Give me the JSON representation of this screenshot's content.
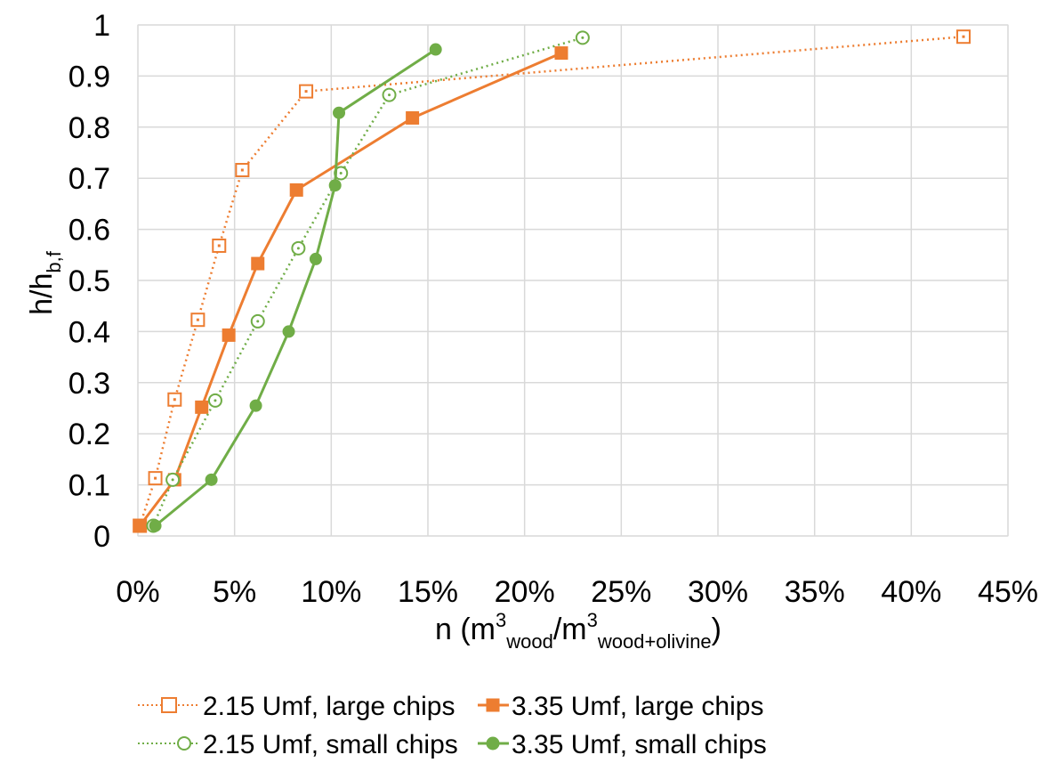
{
  "chart_data": {
    "type": "line",
    "x_axis": {
      "label_main": "n (m",
      "label_sup1": "3",
      "label_sub1": "wood",
      "label_slash": "/m",
      "label_sup2": "3",
      "label_sub2": "wood+olivine",
      "label_close": ")",
      "min": 0,
      "max": 0.45,
      "ticks": [
        0,
        0.05,
        0.1,
        0.15,
        0.2,
        0.25,
        0.3,
        0.35,
        0.4,
        0.45
      ],
      "tick_labels": [
        "0%",
        "5%",
        "10%",
        "15%",
        "20%",
        "25%",
        "30%",
        "35%",
        "40%",
        "45%"
      ]
    },
    "y_axis": {
      "label_main": "h/h",
      "label_sub": "b,f",
      "min": 0,
      "max": 1,
      "ticks": [
        0,
        0.1,
        0.2,
        0.3,
        0.4,
        0.5,
        0.6,
        0.7,
        0.8,
        0.9,
        1
      ],
      "tick_labels": [
        "0",
        "0.1",
        "0.2",
        "0.3",
        "0.4",
        "0.5",
        "0.6",
        "0.7",
        "0.8",
        "0.9",
        "1"
      ]
    },
    "grid": true,
    "legend_position": "bottom",
    "series": [
      {
        "name": "2.15 Umf, large chips",
        "color": "#ED7D31",
        "line_style": "dotted",
        "marker": "open-square",
        "points": [
          [
            0.001,
            0.02
          ],
          [
            0.009,
            0.113
          ],
          [
            0.019,
            0.267
          ],
          [
            0.031,
            0.423
          ],
          [
            0.042,
            0.568
          ],
          [
            0.054,
            0.716
          ],
          [
            0.087,
            0.87
          ],
          [
            0.427,
            0.977
          ]
        ]
      },
      {
        "name": "3.35 Umf, large chips",
        "color": "#ED7D31",
        "line_style": "solid",
        "marker": "filled-square",
        "points": [
          [
            0.001,
            0.02
          ],
          [
            0.019,
            0.11
          ],
          [
            0.033,
            0.252
          ],
          [
            0.047,
            0.393
          ],
          [
            0.062,
            0.533
          ],
          [
            0.082,
            0.677
          ],
          [
            0.142,
            0.818
          ],
          [
            0.219,
            0.945
          ]
        ]
      },
      {
        "name": "2.15 Umf, small chips",
        "color": "#70AD47",
        "line_style": "dotted",
        "marker": "open-circle",
        "points": [
          [
            0.008,
            0.02
          ],
          [
            0.018,
            0.11
          ],
          [
            0.04,
            0.265
          ],
          [
            0.062,
            0.42
          ],
          [
            0.083,
            0.563
          ],
          [
            0.105,
            0.71
          ],
          [
            0.13,
            0.863
          ],
          [
            0.23,
            0.975
          ]
        ]
      },
      {
        "name": "3.35 Umf, small chips",
        "color": "#70AD47",
        "line_style": "solid",
        "marker": "filled-circle",
        "points": [
          [
            0.009,
            0.02
          ],
          [
            0.038,
            0.11
          ],
          [
            0.061,
            0.255
          ],
          [
            0.078,
            0.4
          ],
          [
            0.092,
            0.542
          ],
          [
            0.102,
            0.686
          ],
          [
            0.104,
            0.828
          ],
          [
            0.154,
            0.952
          ]
        ]
      }
    ]
  }
}
